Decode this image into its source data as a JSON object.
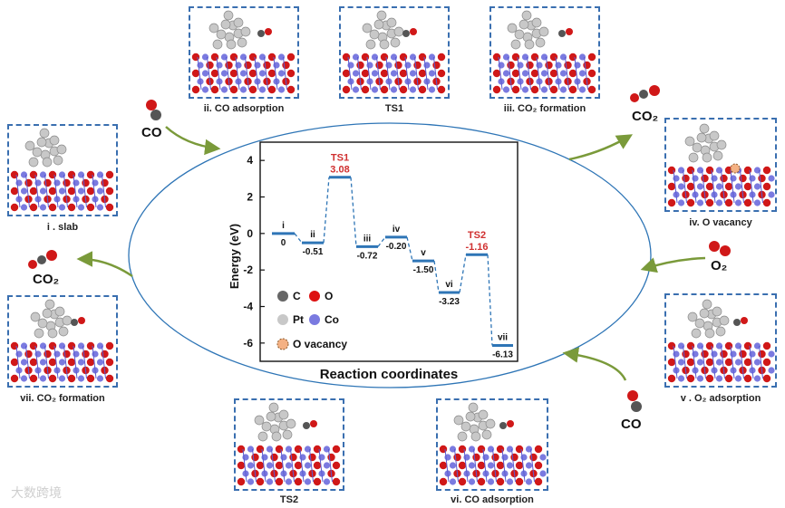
{
  "chart_data": {
    "type": "line",
    "title": "",
    "xlabel": "Reaction coordinates",
    "ylabel": "Energy (eV)",
    "ylim": [
      -7,
      5
    ],
    "yticks": [
      4,
      2,
      0,
      -2,
      -4,
      -6
    ],
    "states": [
      {
        "label": "i",
        "value_label": "0",
        "energy": 0,
        "ts": false
      },
      {
        "label": "ii",
        "value_label": "-0.51",
        "energy": -0.51,
        "ts": false
      },
      {
        "label": "TS1",
        "value_label": "3.08",
        "energy": 3.08,
        "ts": true
      },
      {
        "label": "iii",
        "value_label": "-0.72",
        "energy": -0.72,
        "ts": false
      },
      {
        "label": "iv",
        "value_label": "-0.20",
        "energy": -0.2,
        "ts": false
      },
      {
        "label": "v",
        "value_label": "-1.50",
        "energy": -1.5,
        "ts": false
      },
      {
        "label": "vi",
        "value_label": "-3.23",
        "energy": -3.23,
        "ts": false
      },
      {
        "label": "TS2",
        "value_label": "-1.16",
        "energy": -1.16,
        "ts": true
      },
      {
        "label": "vii",
        "value_label": "-6.13",
        "energy": -6.13,
        "ts": false
      }
    ],
    "legend": [
      {
        "symbol": "C",
        "color": "#666666"
      },
      {
        "symbol": "O",
        "color": "#dd1111"
      },
      {
        "symbol": "Pt",
        "color": "#c8c8c8"
      },
      {
        "symbol": "Co",
        "color": "#7a7ae0"
      },
      {
        "symbol": "O vacancy",
        "color": "#f4b183"
      }
    ],
    "colors": {
      "level": "#2e75b6",
      "ts_label": "#d03030",
      "ellipse": "#2e75b6"
    }
  },
  "panels": [
    {
      "id": "slab",
      "caption": "i . slab"
    },
    {
      "id": "co-adsorption",
      "caption": "ii. CO adsorption"
    },
    {
      "id": "ts1",
      "caption": "TS1"
    },
    {
      "id": "co2-formation-1",
      "caption": "iii. CO₂ formation"
    },
    {
      "id": "o-vacancy",
      "caption": "iv. O vacancy"
    },
    {
      "id": "o2-adsorption",
      "caption": "v . O₂ adsorption"
    },
    {
      "id": "co-adsorption-2",
      "caption": "vi. CO adsorption"
    },
    {
      "id": "ts2",
      "caption": "TS2"
    },
    {
      "id": "co2-formation-2",
      "caption": "vii. CO₂ formation"
    }
  ],
  "molecules": {
    "co_in_1": "CO",
    "co2_out_1": "CO₂",
    "o2_in": "O₂",
    "co_in_2": "CO",
    "co2_out_2": "CO₂"
  },
  "watermark": "大数跨境"
}
